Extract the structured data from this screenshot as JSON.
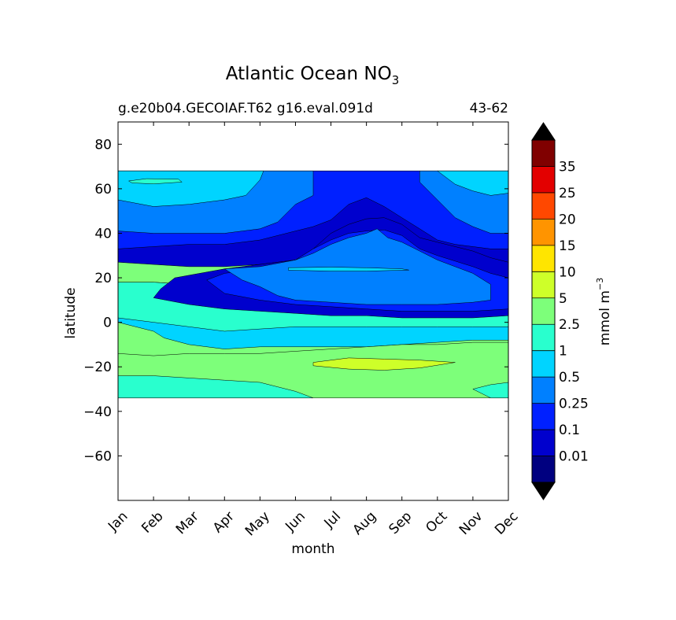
{
  "chart_data": {
    "type": "heatmap",
    "title": "Atlantic Ocean NO",
    "title_subscript": "3",
    "subtitle_left": "g.e20b04.GECOIAF.T62 g16.eval.091d",
    "subtitle_right": "43-62",
    "xlabel": "month",
    "ylabel": "latitude",
    "x_ticks": [
      "Jan",
      "Feb",
      "Mar",
      "Apr",
      "May",
      "Jun",
      "Jul",
      "Aug",
      "Sep",
      "Oct",
      "Nov",
      "Dec"
    ],
    "x_range": [
      0,
      11
    ],
    "ylim": [
      -80,
      90
    ],
    "y_ticks": [
      80,
      60,
      40,
      20,
      0,
      -20,
      -40,
      -60
    ],
    "y_tick_labels": [
      "80",
      "60",
      "40",
      "20",
      "0",
      "−20",
      "−40",
      "−60"
    ],
    "data_lat_range": [
      -34,
      68
    ],
    "colorbar": {
      "label": "mmol m",
      "label_superscript": "−3",
      "levels": [
        0,
        0.01,
        0.1,
        0.25,
        0.5,
        1,
        2.5,
        5,
        10,
        15,
        20,
        25,
        35,
        40
      ],
      "tick_labels": [
        "0.01",
        "0.1",
        "0.25",
        "0.5",
        "1",
        "2.5",
        "5",
        "10",
        "15",
        "20",
        "25",
        "35"
      ],
      "colors": [
        "#000080",
        "#0000cd",
        "#0020ff",
        "#0080ff",
        "#00d4ff",
        "#29ffce",
        "#7dff7a",
        "#ceff29",
        "#ffe500",
        "#ff9400",
        "#ff4800",
        "#e30000",
        "#800000"
      ],
      "under_color": "#000000",
      "over_color": "#000000"
    },
    "contour_fields": [
      {
        "level": 1,
        "name": "band-upper-cyan",
        "points": [
          [
            0,
            68
          ],
          [
            11,
            68
          ],
          [
            11,
            27
          ],
          [
            10.5,
            26
          ],
          [
            9.5,
            25
          ],
          [
            8.5,
            28
          ],
          [
            7.5,
            30
          ],
          [
            7,
            31
          ],
          [
            6,
            30
          ],
          [
            5,
            28
          ],
          [
            4,
            26
          ],
          [
            3,
            25
          ],
          [
            2,
            25
          ],
          [
            1,
            26
          ],
          [
            0,
            27
          ]
        ]
      },
      {
        "level": 2,
        "name": "band-upper-green",
        "points": [
          [
            0,
            68
          ],
          [
            11,
            68
          ],
          [
            11,
            33
          ],
          [
            10.5,
            33
          ],
          [
            9.5,
            35
          ],
          [
            9,
            37
          ],
          [
            8.5,
            42
          ],
          [
            8,
            47
          ],
          [
            7.5,
            52
          ],
          [
            7,
            56
          ],
          [
            6.5,
            53
          ],
          [
            6,
            46
          ],
          [
            5.5,
            43
          ],
          [
            5,
            41
          ],
          [
            4,
            37
          ],
          [
            3,
            35
          ],
          [
            2,
            35
          ],
          [
            1,
            34
          ],
          [
            0,
            33
          ]
        ]
      },
      {
        "level": 3,
        "name": "band-upper-yellowgreen",
        "points": [
          [
            0,
            68
          ],
          [
            5.5,
            68
          ],
          [
            5.5,
            57
          ],
          [
            5,
            53
          ],
          [
            4.5,
            45
          ],
          [
            4,
            42
          ],
          [
            3,
            40
          ],
          [
            2,
            40
          ],
          [
            1,
            40
          ],
          [
            0,
            41
          ]
        ]
      },
      {
        "level": 3,
        "name": "band-upper-yellowgreen-east",
        "points": [
          [
            8.5,
            68
          ],
          [
            11,
            68
          ],
          [
            11,
            40
          ],
          [
            10.5,
            40
          ],
          [
            10,
            43
          ],
          [
            9.5,
            47
          ],
          [
            9,
            55
          ],
          [
            8.5,
            63
          ]
        ]
      },
      {
        "level": 4,
        "name": "band-upper-yellow",
        "points": [
          [
            0,
            68
          ],
          [
            4.1,
            68
          ],
          [
            4,
            64
          ],
          [
            3.6,
            57
          ],
          [
            3,
            55
          ],
          [
            2,
            53
          ],
          [
            1,
            52
          ],
          [
            0,
            55
          ]
        ]
      },
      {
        "level": 4,
        "name": "band-upper-yellow-east",
        "points": [
          [
            9,
            68
          ],
          [
            11,
            68
          ],
          [
            11,
            58
          ],
          [
            10.5,
            57
          ],
          [
            10,
            59
          ],
          [
            9.5,
            62
          ]
        ]
      },
      {
        "level": 5,
        "name": "spot-upper-orange",
        "points": [
          [
            0.3,
            63.5
          ],
          [
            0.8,
            64.5
          ],
          [
            1.7,
            64.3
          ],
          [
            1.8,
            63
          ],
          [
            1,
            62.2
          ],
          [
            0.4,
            62.6
          ]
        ]
      },
      {
        "level": 4,
        "name": "band-eq-cyan",
        "points": [
          [
            0,
            18
          ],
          [
            1,
            18
          ],
          [
            2,
            17
          ],
          [
            2.5,
            16
          ],
          [
            3,
            15
          ],
          [
            4,
            15
          ],
          [
            5,
            13
          ],
          [
            5.5,
            10
          ],
          [
            6,
            8
          ],
          [
            7,
            8
          ],
          [
            8,
            7
          ],
          [
            9,
            6
          ],
          [
            10,
            5
          ],
          [
            11,
            5
          ],
          [
            11,
            -8
          ],
          [
            10,
            -8
          ],
          [
            9,
            -9
          ],
          [
            8,
            -10
          ],
          [
            7,
            -11
          ],
          [
            6,
            -11
          ],
          [
            5,
            -11
          ],
          [
            4,
            -11
          ],
          [
            3,
            -12
          ],
          [
            2,
            -10
          ],
          [
            1.3,
            -7
          ],
          [
            1,
            -4
          ],
          [
            0.5,
            -2
          ],
          [
            0,
            0
          ]
        ]
      },
      {
        "level": 5,
        "name": "band-eq-lightblue",
        "points": [
          [
            0,
            18
          ],
          [
            1,
            18
          ],
          [
            2,
            17
          ],
          [
            3,
            15
          ],
          [
            4,
            15
          ],
          [
            5,
            13
          ],
          [
            6,
            8
          ],
          [
            7,
            8
          ],
          [
            8,
            7
          ],
          [
            9,
            6
          ],
          [
            10,
            5
          ],
          [
            11,
            5
          ],
          [
            11,
            -2
          ],
          [
            10,
            -2
          ],
          [
            9,
            -2
          ],
          [
            8,
            -2
          ],
          [
            7,
            -2
          ],
          [
            6,
            -2
          ],
          [
            5,
            -2
          ],
          [
            4,
            -3
          ],
          [
            3,
            -4
          ],
          [
            2,
            -2
          ],
          [
            1,
            0
          ],
          [
            0,
            2
          ]
        ]
      },
      {
        "level": 1,
        "name": "blob-blue",
        "points": [
          [
            1.6,
            20
          ],
          [
            3,
            24
          ],
          [
            4,
            26
          ],
          [
            5,
            28
          ],
          [
            5.5,
            33
          ],
          [
            6,
            40
          ],
          [
            6.5,
            44
          ],
          [
            7,
            46.5
          ],
          [
            7.5,
            47
          ],
          [
            8,
            44
          ],
          [
            8.5,
            38
          ],
          [
            9,
            36
          ],
          [
            10,
            32
          ],
          [
            10.5,
            29
          ],
          [
            11,
            27
          ],
          [
            11,
            3
          ],
          [
            10,
            2
          ],
          [
            9,
            2
          ],
          [
            8,
            2
          ],
          [
            7,
            3
          ],
          [
            6,
            3
          ],
          [
            5,
            4
          ],
          [
            4,
            5
          ],
          [
            3,
            6
          ],
          [
            2,
            8
          ],
          [
            1,
            11
          ],
          [
            1.2,
            15
          ]
        ]
      },
      {
        "level": 2,
        "name": "blob-mediumblue",
        "points": [
          [
            2.5,
            19
          ],
          [
            3,
            22
          ],
          [
            4,
            24
          ],
          [
            5,
            28
          ],
          [
            5.5,
            33
          ],
          [
            6,
            37
          ],
          [
            6.5,
            40
          ],
          [
            7,
            41
          ],
          [
            7.5,
            41.5
          ],
          [
            8,
            39
          ],
          [
            8.5,
            33
          ],
          [
            9,
            30
          ],
          [
            10,
            25
          ],
          [
            10.5,
            22
          ],
          [
            11,
            20
          ],
          [
            11,
            6
          ],
          [
            10,
            5
          ],
          [
            9,
            5
          ],
          [
            8,
            5
          ],
          [
            7,
            6
          ],
          [
            6,
            7
          ],
          [
            5,
            8
          ],
          [
            4,
            10
          ],
          [
            3,
            13
          ]
        ]
      },
      {
        "level": 3,
        "name": "blob-darkblue",
        "points": [
          [
            3,
            24
          ],
          [
            4,
            25
          ],
          [
            5,
            28
          ],
          [
            5.5,
            31
          ],
          [
            6,
            35
          ],
          [
            6.5,
            38
          ],
          [
            7,
            40
          ],
          [
            7.3,
            42
          ],
          [
            7.6,
            38
          ],
          [
            8,
            36
          ],
          [
            8.5,
            32
          ],
          [
            9,
            28
          ],
          [
            10,
            22
          ],
          [
            10.5,
            17
          ],
          [
            10.5,
            10
          ],
          [
            10,
            9
          ],
          [
            9,
            8
          ],
          [
            8,
            8
          ],
          [
            7,
            8
          ],
          [
            6,
            9
          ],
          [
            5,
            10
          ],
          [
            4.5,
            12
          ],
          [
            4,
            16
          ],
          [
            3.5,
            19
          ]
        ]
      },
      {
        "level": 4,
        "name": "line-navy",
        "points": [
          [
            4.8,
            24.5
          ],
          [
            6,
            24.8
          ],
          [
            7,
            24.5
          ],
          [
            8,
            24
          ],
          [
            8.2,
            23.5
          ],
          [
            7,
            23
          ],
          [
            6,
            23
          ],
          [
            4.8,
            23.4
          ]
        ]
      },
      {
        "level": 6,
        "name": "band-south-green",
        "points": [
          [
            0,
            -14
          ],
          [
            1,
            -15
          ],
          [
            2,
            -14
          ],
          [
            3,
            -14
          ],
          [
            4,
            -14
          ],
          [
            5,
            -13
          ],
          [
            6,
            -12
          ],
          [
            7,
            -11
          ],
          [
            8,
            -10
          ],
          [
            9,
            -10
          ],
          [
            10,
            -9
          ],
          [
            11,
            -9
          ],
          [
            11,
            -34
          ],
          [
            0,
            -34
          ]
        ]
      },
      {
        "level": 7,
        "name": "band-south-yellowgreen",
        "points": [
          [
            5.5,
            -18
          ],
          [
            6.5,
            -16
          ],
          [
            7.5,
            -16.5
          ],
          [
            8.5,
            -17
          ],
          [
            9.5,
            -18
          ],
          [
            8.5,
            -20.5
          ],
          [
            7.5,
            -21.5
          ],
          [
            6.5,
            -21
          ],
          [
            5.5,
            -19.5
          ]
        ]
      },
      {
        "level": 5,
        "name": "band-south-cyan-west",
        "points": [
          [
            0,
            -24
          ],
          [
            1,
            -24
          ],
          [
            2,
            -25
          ],
          [
            3,
            -26
          ],
          [
            4,
            -27
          ],
          [
            4.5,
            -29
          ],
          [
            5,
            -31
          ],
          [
            5.5,
            -34
          ],
          [
            0,
            -34
          ]
        ]
      },
      {
        "level": 5,
        "name": "band-south-cyan-east",
        "points": [
          [
            10.5,
            -34
          ],
          [
            11,
            -34
          ],
          [
            11,
            -27
          ],
          [
            10.5,
            -28
          ],
          [
            10,
            -30
          ]
        ]
      }
    ]
  }
}
